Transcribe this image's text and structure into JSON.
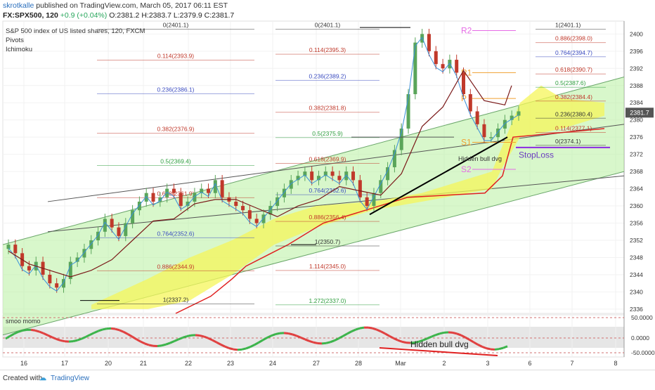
{
  "header": {
    "author": "skrotkalle",
    "published": "published on TradingView.com, March 05, 2017 06:11 EST",
    "symbol": "FX:SPX500, 120",
    "change": "+0.9 (+0.04%)",
    "ohlc_o": "O:2381.2",
    "ohlc_h": "H:2383.7",
    "ohlc_l": "L:2379.9",
    "ohlc_c": "C:2381.7"
  },
  "overlay": {
    "title": "S&P 500 index of US listed shares, 120, FXCM",
    "ind1": "Pivots",
    "ind2": "Ichimoku"
  },
  "colors": {
    "up": "#5aa55a",
    "down": "#c0392b",
    "cloud": "#f5f55a",
    "channel": "#b8f0a0",
    "kijun": "#7b1a1a",
    "tenkan": "#3a8fd8"
  },
  "chart_data": {
    "type": "line",
    "x": [
      "16",
      "17",
      "20",
      "21",
      "22",
      "23",
      "24",
      "27",
      "28",
      "Mar",
      "2",
      "3",
      "6",
      "7",
      "8"
    ],
    "ylim": [
      2335,
      2403
    ],
    "yticks": [
      2336,
      2340,
      2344,
      2348,
      2352,
      2356,
      2360,
      2364,
      2368,
      2372,
      2376,
      2380,
      2384,
      2388,
      2392,
      2396,
      2400
    ],
    "last_price": "2381.7",
    "close_series": [
      2351,
      2349,
      2346,
      2345,
      2347,
      2344,
      2342,
      2341,
      2343,
      2347,
      2348,
      2350,
      2352,
      2354,
      2357,
      2355,
      2353,
      2356,
      2359,
      2361,
      2363,
      2361,
      2362,
      2364,
      2363,
      2360,
      2361,
      2363,
      2364,
      2363,
      2366,
      2362,
      2361,
      2360,
      2359,
      2357,
      2356,
      2358,
      2360,
      2362,
      2364,
      2366,
      2367,
      2368,
      2366,
      2367,
      2368,
      2367,
      2366,
      2368,
      2366,
      2362,
      2360,
      2363,
      2366,
      2369,
      2373,
      2378,
      2386,
      2398,
      2400,
      2396,
      2393,
      2392,
      2394,
      2391,
      2386,
      2382,
      2379,
      2376,
      2376,
      2378,
      2380,
      2381,
      2382
    ],
    "fib_left": [
      {
        "label": "0(2401.1)",
        "color": "#333333"
      },
      {
        "label": "0.114(2393.9)",
        "color": "#c0392b"
      },
      {
        "label": "0.236(2386.1)",
        "color": "#3b4cc0"
      },
      {
        "label": "0.382(2376.9)",
        "color": "#c0392b"
      },
      {
        "label": "0.5(2369.4)",
        "color": "#2e9e3e"
      },
      {
        "label": "0.618(2361.9)",
        "color": "#c0392b"
      },
      {
        "label": "0.764(2352.6)",
        "color": "#3b4cc0"
      },
      {
        "label": "0.886(2344.9)",
        "color": "#c0392b"
      },
      {
        "label": "1(2337.2)",
        "color": "#333333"
      }
    ],
    "fib_mid": [
      {
        "label": "0(2401.1)",
        "color": "#333333"
      },
      {
        "label": "0.114(2395.3)",
        "color": "#c0392b"
      },
      {
        "label": "0.236(2389.2)",
        "color": "#3b4cc0"
      },
      {
        "label": "0.382(2381.8)",
        "color": "#c0392b"
      },
      {
        "label": "0.5(2375.9)",
        "color": "#2e9e3e"
      },
      {
        "label": "0.618(2369.9)",
        "color": "#c0392b"
      },
      {
        "label": "0.764(2362.6)",
        "color": "#3b4cc0"
      },
      {
        "label": "0.886(2356.4)",
        "color": "#c0392b"
      },
      {
        "label": "1(2350.7)",
        "color": "#333333"
      },
      {
        "label": "1.114(2345.0)",
        "color": "#c0392b"
      },
      {
        "label": "1.272(2337.0)",
        "color": "#2e9e3e"
      }
    ],
    "fib_right": [
      {
        "label": "1(2401.1)",
        "color": "#333333"
      },
      {
        "label": "0.886(2398.0)",
        "color": "#c0392b"
      },
      {
        "label": "0.764(2394.7)",
        "color": "#3b4cc0"
      },
      {
        "label": "0.618(2390.7)",
        "color": "#c0392b"
      },
      {
        "label": "0.5(2387.6)",
        "color": "#2e9e3e"
      },
      {
        "label": "0.382(2384.4)",
        "color": "#c0392b"
      },
      {
        "label": "0.236(2380.4)",
        "color": "#333333"
      },
      {
        "label": "0.114(2377.1)",
        "color": "#c0392b"
      },
      {
        "label": "0(2374.1)",
        "color": "#333333"
      }
    ],
    "pivots": [
      {
        "label": "R2",
        "color": "#e66be6"
      },
      {
        "label": "R1",
        "color": "#f0a030"
      },
      {
        "label": "P",
        "color": "#f0a030"
      },
      {
        "label": "S1",
        "color": "#f0a030"
      },
      {
        "label": "S2",
        "color": "#e66be6"
      }
    ],
    "annotations": {
      "hidden_dvg_small": "Hidden bull dvg",
      "stoploss": "StopLoss",
      "hidden_dvg_large": "Hidden bull dvg"
    },
    "oscillator": {
      "name": "smoo momo",
      "yticks": [
        "50.0000",
        "0.0000",
        "-50.0000"
      ]
    }
  },
  "footer": {
    "created_with": "Created with",
    "brand": "TradingView"
  }
}
